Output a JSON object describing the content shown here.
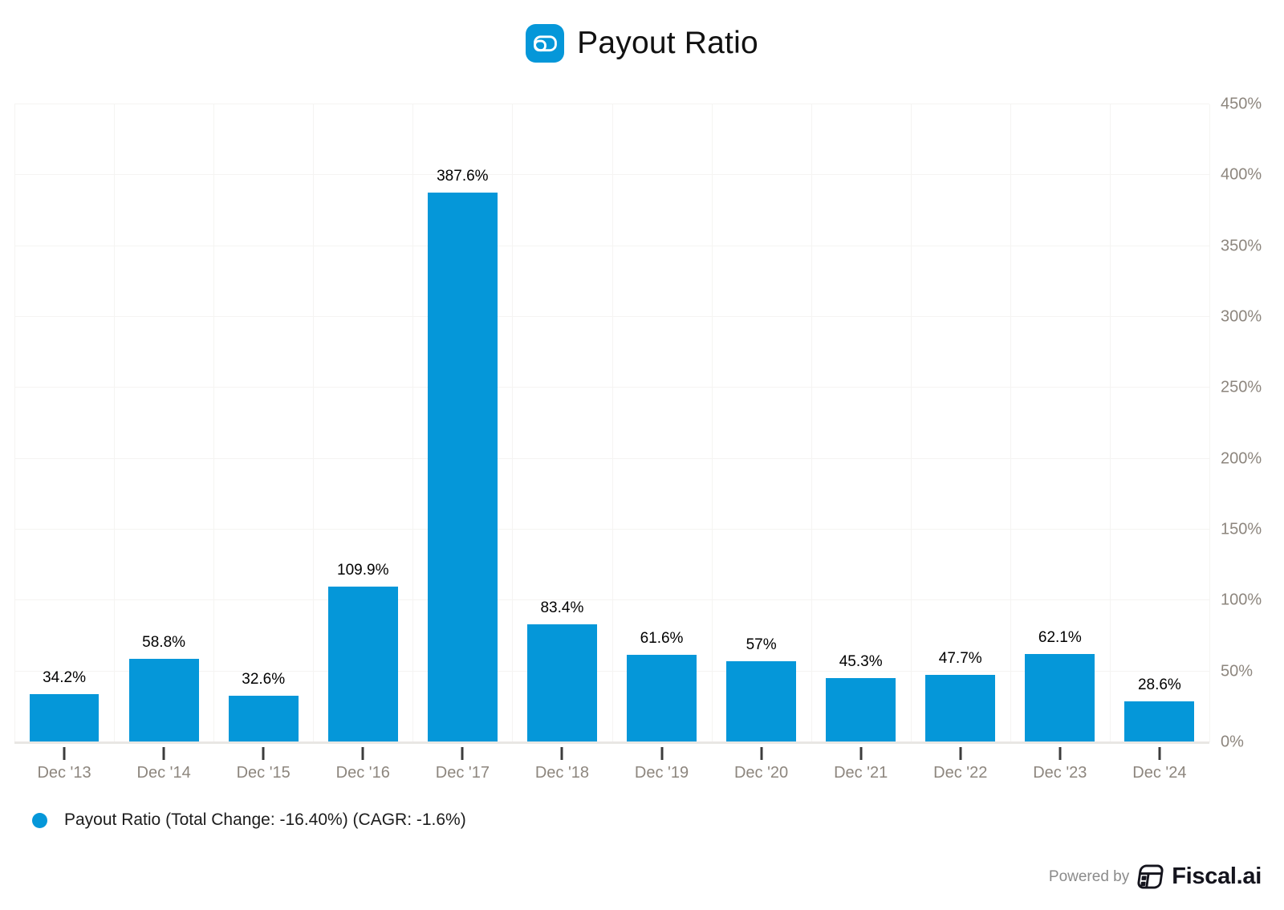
{
  "header": {
    "title": "Payout Ratio",
    "logo": "abbott-a-logo"
  },
  "chart_data": {
    "type": "bar",
    "title": "Payout Ratio",
    "categories": [
      "Dec '13",
      "Dec '14",
      "Dec '15",
      "Dec '16",
      "Dec '17",
      "Dec '18",
      "Dec '19",
      "Dec '20",
      "Dec '21",
      "Dec '22",
      "Dec '23",
      "Dec '24"
    ],
    "values": [
      34.2,
      58.8,
      32.6,
      109.9,
      387.6,
      83.4,
      61.6,
      57,
      45.3,
      47.7,
      62.1,
      28.6
    ],
    "value_labels": [
      "34.2%",
      "58.8%",
      "32.6%",
      "109.9%",
      "387.6%",
      "83.4%",
      "61.6%",
      "57%",
      "45.3%",
      "47.7%",
      "62.1%",
      "28.6%"
    ],
    "xlabel": "",
    "ylabel": "",
    "ylim": [
      0,
      450
    ],
    "y_tick_step": 50,
    "y_tick_labels": [
      "0%",
      "50%",
      "100%",
      "150%",
      "200%",
      "250%",
      "300%",
      "350%",
      "400%",
      "450%"
    ],
    "grid": true,
    "legend_position": "bottom-left",
    "legend_entries": [
      "Payout Ratio (Total Change: -16.40%) (CAGR: -1.6%)"
    ]
  },
  "legend": {
    "label": "Payout Ratio (Total Change: -16.40%) (CAGR: -1.6%)"
  },
  "footer": {
    "powered_by": "Powered by",
    "brand": "Fiscal.ai"
  },
  "colors": {
    "bar": "#0597d9",
    "title": "#111111",
    "data_label": "#000000",
    "axis_label": "#8d867e",
    "tick": "#3c3c3c",
    "gridline": "#f5f4f2",
    "axis_line": "#e9e7e4",
    "legend_text": "#1c1c1c",
    "footer_text": "#8b8b8b",
    "footer_brand": "#14141d"
  }
}
